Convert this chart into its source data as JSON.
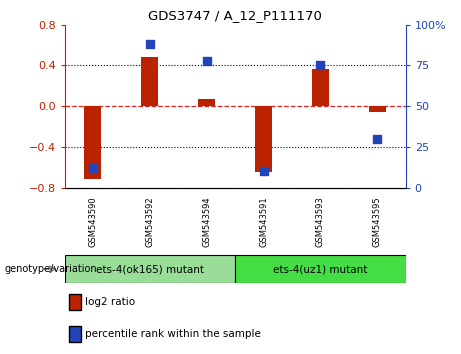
{
  "title": "GDS3747 / A_12_P111170",
  "categories": [
    "GSM543590",
    "GSM543592",
    "GSM543594",
    "GSM543591",
    "GSM543593",
    "GSM543595"
  ],
  "log2_ratios": [
    -0.72,
    0.48,
    0.07,
    -0.65,
    0.37,
    -0.06
  ],
  "percentile_ranks": [
    12,
    88,
    78,
    10,
    75,
    30
  ],
  "ylim_left": [
    -0.8,
    0.8
  ],
  "ylim_right": [
    0,
    100
  ],
  "yticks_left": [
    -0.8,
    -0.4,
    0,
    0.4,
    0.8
  ],
  "yticks_right": [
    0,
    25,
    50,
    75,
    100
  ],
  "bar_color": "#BB2200",
  "dot_color": "#2244BB",
  "zero_line_color": "#DD2222",
  "group1_label": "ets-4(ok165) mutant",
  "group2_label": "ets-4(uz1) mutant",
  "group1_color": "#99DD99",
  "group2_color": "#44DD44",
  "legend_red_label": "log2 ratio",
  "legend_blue_label": "percentile rank within the sample",
  "genotype_label": "genotype/variation",
  "background_color": "#FFFFFF",
  "tick_label_area_color": "#BBBBBB"
}
